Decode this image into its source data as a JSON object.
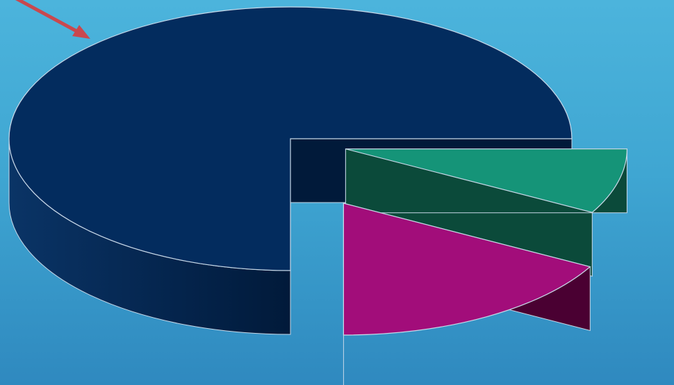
{
  "chart_data": {
    "type": "pie",
    "style": "3d-exploded",
    "title": "",
    "legend": "none",
    "data_labels": "none",
    "slices": [
      {
        "value": 75,
        "color": "#032c5e",
        "side_color": "#011a3a",
        "exploded": false
      },
      {
        "value": 8,
        "color": "#159478",
        "side_color": "#0b4a3a",
        "exploded": true
      },
      {
        "value": 17,
        "color": "#a20d7a",
        "side_color": "#4a0032",
        "exploded": true
      }
    ]
  },
  "annotation": {
    "type": "arrow",
    "color": "#c9484e",
    "points_to": "slice-0"
  },
  "colors": {
    "background_top": "#4cb4dc",
    "background_bottom": "#2f89bf",
    "edge_highlight": "#c8d8e8"
  }
}
